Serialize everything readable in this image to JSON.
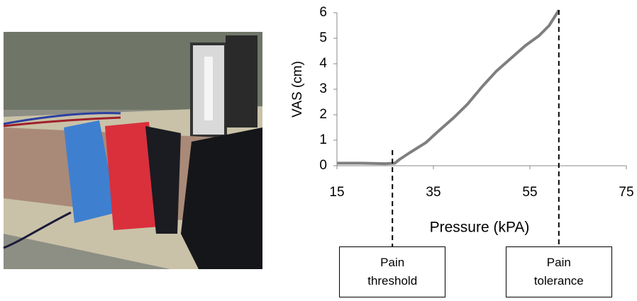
{
  "chart_data": {
    "type": "line",
    "x_label": "Pressure (kPA)",
    "y_label": "VAS (cm)",
    "x": [
      15,
      20,
      25,
      27,
      28,
      30,
      33.4,
      36,
      39.3,
      42,
      45.1,
      48,
      51,
      54,
      56.9,
      59,
      61
    ],
    "series": [
      {
        "color": "#7f7f7f",
        "values": [
          0.1,
          0.1,
          0.08,
          0.1,
          0.25,
          0.5,
          0.9,
          1.35,
          1.9,
          2.4,
          3.1,
          3.7,
          4.2,
          4.7,
          5.1,
          5.5,
          6.1
        ]
      }
    ],
    "xlim": [
      15,
      75
    ],
    "xticks": [
      15,
      35,
      55,
      75
    ],
    "ylim": [
      0,
      6
    ],
    "yticks": [
      0,
      1,
      2,
      3,
      4,
      5,
      6
    ],
    "annotations": [
      {
        "x": 26.5,
        "label": "Pain threshold"
      },
      {
        "x": 61,
        "label": "Pain tolerance"
      }
    ]
  }
}
